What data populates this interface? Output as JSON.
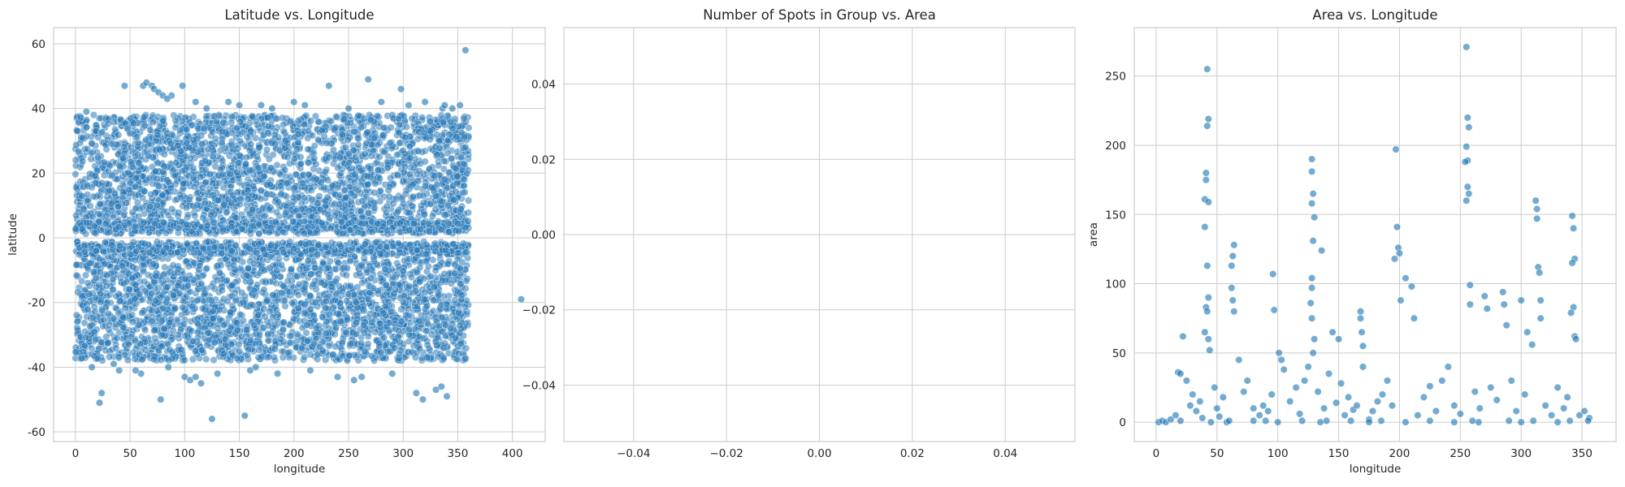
{
  "chart_data": [
    {
      "type": "scatter",
      "title": "Latitude vs. Longitude",
      "xlabel": "longitude",
      "ylabel": "latitude",
      "xlim": [
        -20,
        430
      ],
      "ylim": [
        -63,
        65
      ],
      "xticks": [
        0,
        50,
        100,
        150,
        200,
        250,
        300,
        350,
        400
      ],
      "yticks": [
        -60,
        -40,
        -20,
        0,
        20,
        40,
        60
      ],
      "grid": true,
      "color": "#1f77b4",
      "dense_band": {
        "x_range": [
          0,
          360
        ],
        "north_band": [
          2,
          38
        ],
        "south_band": [
          -38,
          -2
        ]
      },
      "x": [
        24,
        22,
        78,
        125,
        155,
        62,
        98,
        45,
        88,
        110,
        140,
        170,
        200,
        232,
        268,
        298,
        320,
        336,
        352,
        357,
        10,
        65,
        70,
        72,
        76,
        80,
        84,
        120,
        150,
        180,
        210,
        250,
        280,
        305,
        338,
        345,
        40,
        60,
        100,
        105,
        110,
        115,
        130,
        160,
        165,
        185,
        215,
        240,
        255,
        262,
        290,
        312,
        318,
        330,
        335,
        340,
        15,
        35,
        55,
        85,
        408
      ],
      "y": [
        -48,
        -51,
        -50,
        -56,
        -55,
        47,
        47,
        47,
        44,
        42,
        42,
        41,
        42,
        47,
        49,
        46,
        42,
        40,
        41,
        58,
        39,
        48,
        47,
        46,
        45,
        44,
        43,
        40,
        41,
        40,
        41,
        40,
        42,
        41,
        41,
        40,
        -41,
        -42,
        -43,
        -44,
        -43,
        -45,
        -42,
        -41,
        -40,
        -42,
        -41,
        -43,
        -44,
        -43,
        -42,
        -48,
        -50,
        -47,
        -46,
        -49,
        -40,
        -39,
        -41,
        -40,
        -19
      ]
    },
    {
      "type": "scatter",
      "title": "Number of Spots in Group vs. Area",
      "xlabel": "",
      "ylabel": "",
      "xlim": [
        -0.055,
        0.055
      ],
      "ylim": [
        -0.055,
        0.055
      ],
      "xticks": [
        -0.04,
        -0.02,
        0.0,
        0.02,
        0.04
      ],
      "xtick_labels": [
        "−0.04",
        "−0.02",
        "0.00",
        "0.02",
        "0.04"
      ],
      "yticks": [
        -0.04,
        -0.02,
        0.0,
        0.02,
        0.04
      ],
      "ytick_labels": [
        "−0.04",
        "−0.02",
        "0.00",
        "0.02",
        "0.04"
      ],
      "grid": true,
      "x": [],
      "y": []
    },
    {
      "type": "scatter",
      "title": "Area vs. Longitude",
      "xlabel": "longitude",
      "ylabel": "area",
      "xlim": [
        -18,
        378
      ],
      "ylim": [
        -14,
        285
      ],
      "xticks": [
        0,
        50,
        100,
        150,
        200,
        250,
        300,
        350
      ],
      "yticks": [
        0,
        50,
        100,
        150,
        200,
        250
      ],
      "grid": true,
      "color": "#1f77b4",
      "x": [
        42,
        43,
        42,
        41,
        41,
        40,
        43,
        40,
        42,
        43,
        41,
        42,
        40,
        43,
        44,
        64,
        63,
        62,
        62,
        63,
        64,
        96,
        97,
        101,
        103,
        105,
        128,
        128,
        129,
        128,
        130,
        129,
        128,
        128,
        127,
        128,
        130,
        129,
        136,
        145,
        150,
        168,
        168,
        169,
        170,
        170,
        197,
        198,
        199,
        200,
        196,
        201,
        205,
        210,
        212,
        255,
        256,
        257,
        255,
        256,
        254,
        256,
        257,
        255,
        258,
        258,
        270,
        272,
        285,
        286,
        288,
        300,
        305,
        309,
        312,
        313,
        313,
        314,
        315,
        316,
        316,
        342,
        343,
        344,
        342,
        343,
        341,
        344,
        345,
        2,
        5,
        8,
        12,
        16,
        18,
        20,
        22,
        25,
        28,
        30,
        33,
        36,
        38,
        48,
        50,
        52,
        55,
        58,
        68,
        72,
        75,
        80,
        85,
        88,
        92,
        95,
        110,
        115,
        118,
        122,
        125,
        133,
        138,
        142,
        148,
        152,
        155,
        158,
        162,
        165,
        175,
        178,
        182,
        186,
        190,
        194,
        215,
        220,
        225,
        230,
        235,
        240,
        245,
        250,
        262,
        266,
        275,
        280,
        292,
        296,
        303,
        320,
        325,
        330,
        335,
        338,
        348,
        352,
        356,
        45,
        100,
        135,
        175,
        205,
        245,
        265,
        300,
        330,
        20,
        60,
        80,
        90,
        120,
        140,
        160,
        185,
        225,
        260,
        290,
        310,
        340,
        355
      ],
      "y": [
        255,
        219,
        214,
        180,
        175,
        161,
        159,
        141,
        113,
        90,
        83,
        80,
        65,
        60,
        52,
        128,
        120,
        113,
        97,
        88,
        80,
        107,
        81,
        50,
        45,
        38,
        190,
        181,
        165,
        158,
        148,
        131,
        104,
        97,
        86,
        75,
        60,
        50,
        124,
        65,
        60,
        80,
        75,
        65,
        55,
        40,
        197,
        141,
        126,
        122,
        118,
        88,
        104,
        98,
        75,
        271,
        220,
        213,
        199,
        189,
        188,
        170,
        165,
        160,
        99,
        85,
        91,
        82,
        94,
        85,
        70,
        88,
        65,
        56,
        160,
        154,
        147,
        112,
        108,
        88,
        75,
        149,
        140,
        118,
        115,
        83,
        79,
        62,
        60,
        0,
        1,
        0,
        2,
        5,
        36,
        35,
        62,
        30,
        12,
        20,
        8,
        15,
        3,
        25,
        10,
        4,
        18,
        0,
        45,
        22,
        30,
        10,
        5,
        12,
        8,
        20,
        15,
        25,
        6,
        30,
        40,
        22,
        10,
        35,
        14,
        28,
        5,
        18,
        9,
        12,
        2,
        8,
        15,
        20,
        30,
        12,
        5,
        18,
        26,
        8,
        30,
        40,
        12,
        6,
        22,
        10,
        25,
        16,
        30,
        8,
        20,
        12,
        5,
        25,
        10,
        18,
        5,
        8,
        3,
        0,
        0,
        0,
        0,
        0,
        0,
        0,
        0,
        0,
        1,
        1,
        1,
        1,
        1,
        1,
        1,
        1,
        1,
        1,
        1,
        1,
        1,
        1
      ]
    }
  ]
}
